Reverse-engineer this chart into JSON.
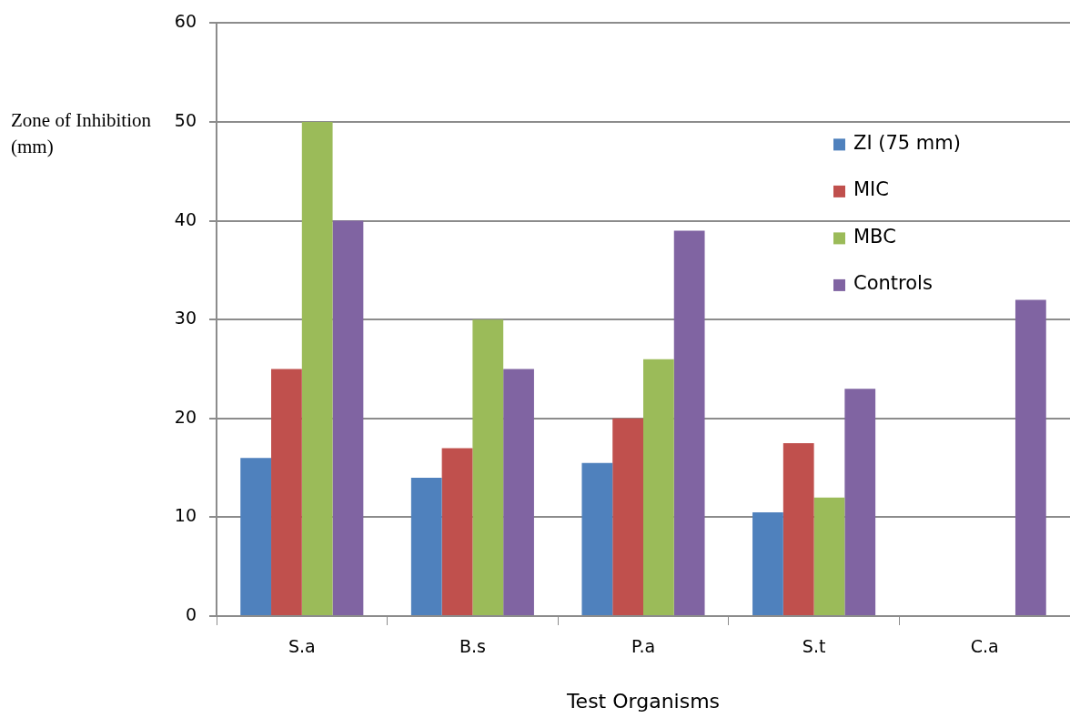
{
  "chart_data": {
    "type": "bar",
    "xlabel": "Test Organisms",
    "ylabel": "Zone of Inhibition (mm)",
    "categories": [
      "S.a",
      "B.s",
      "P.a",
      "S.t",
      "C.a"
    ],
    "series": [
      {
        "name": "ZI (75 mm)",
        "color": "#4f81bd",
        "values": [
          16,
          14,
          15.5,
          10.5,
          null
        ]
      },
      {
        "name": "MIC",
        "color": "#c0504d",
        "values": [
          25,
          17,
          20,
          17.5,
          null
        ]
      },
      {
        "name": "MBC",
        "color": "#9bbb59",
        "values": [
          50,
          30,
          26,
          12,
          null
        ]
      },
      {
        "name": "Controls",
        "color": "#8064a2",
        "values": [
          40,
          25,
          39,
          23,
          32
        ]
      }
    ],
    "ylim": [
      0,
      60
    ],
    "yticks": [
      0,
      10,
      20,
      30,
      40,
      50,
      60
    ],
    "grid": "y",
    "legend": "top right"
  }
}
